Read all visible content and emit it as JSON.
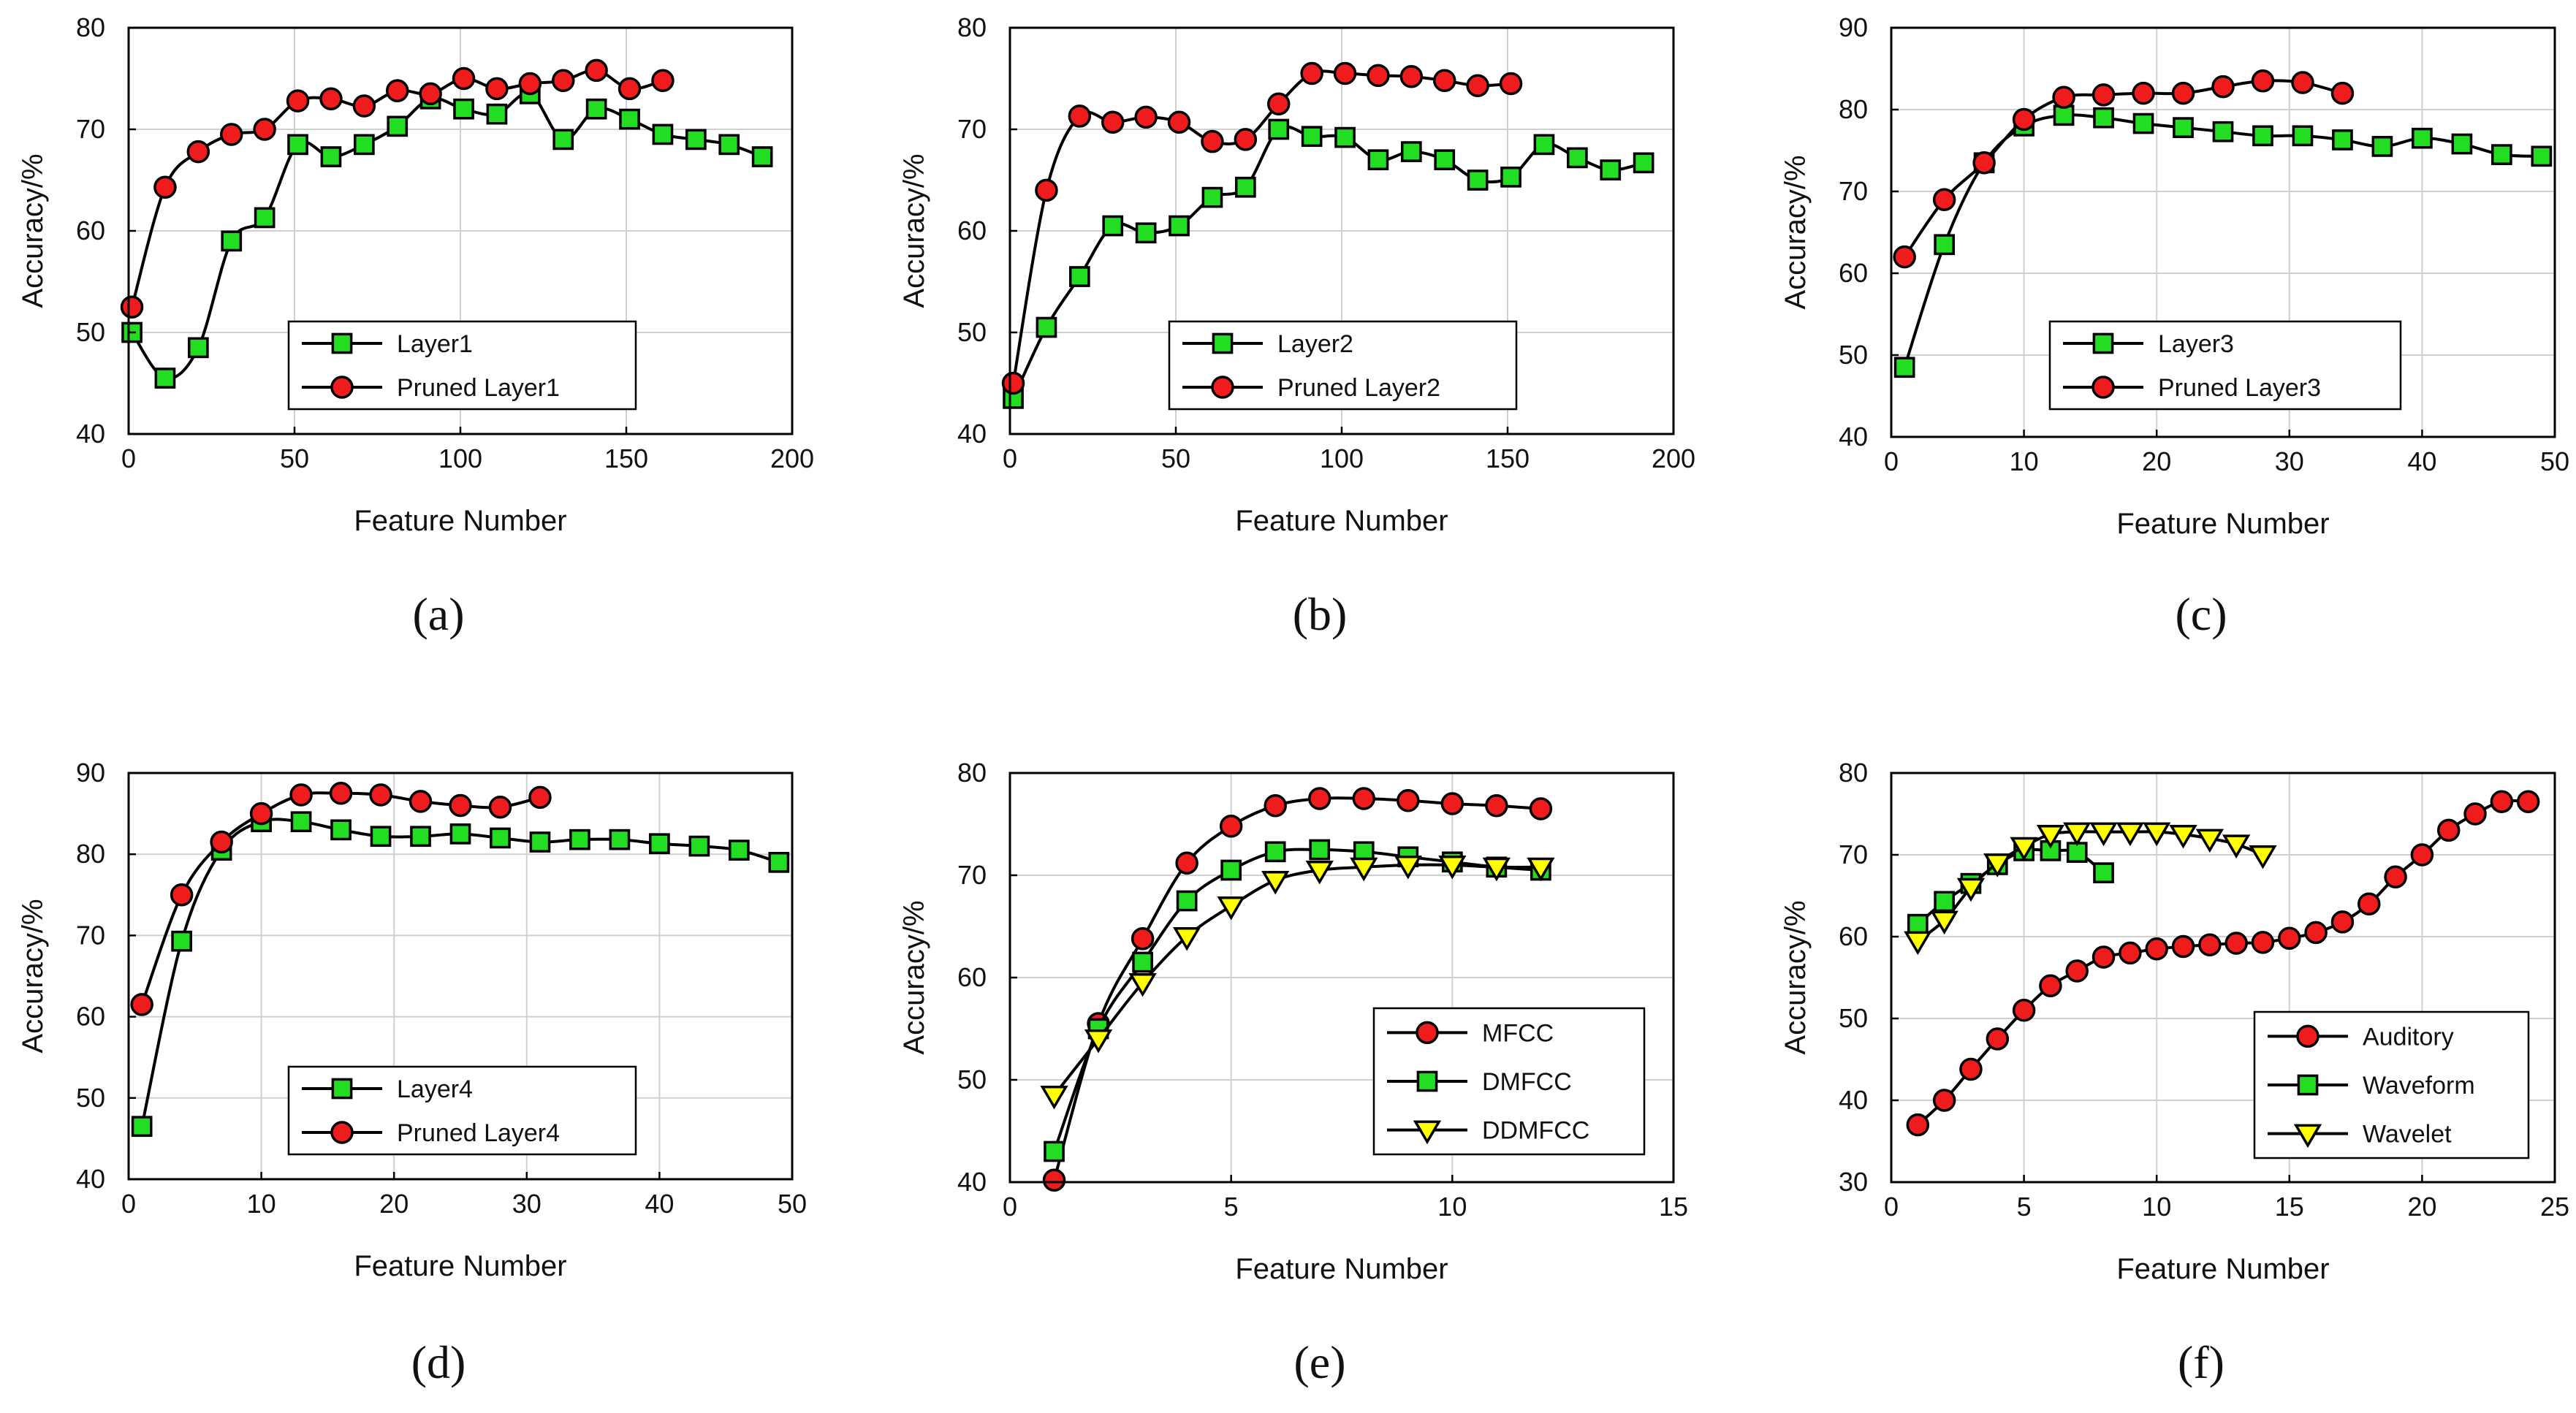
{
  "colors": {
    "red_marker": "#ee1c1c",
    "green_marker": "#22dd22",
    "yellow_marker": "#ffff00",
    "line": "#000000",
    "axes": "#000000"
  },
  "chart_data": [
    {
      "type": "line",
      "panel_label": "(a)",
      "xlabel": "Feature Number",
      "ylabel": "Accuracy/%",
      "xlim": [
        0,
        200
      ],
      "ylim": [
        40,
        80
      ],
      "xticks": [
        0,
        50,
        100,
        150,
        200
      ],
      "yticks": [
        40,
        50,
        60,
        70,
        80
      ],
      "grid": true,
      "legend_placement": "lower-center",
      "series": [
        {
          "name": "Layer1",
          "marker": "square",
          "color": "#22dd22",
          "x": [
            1,
            11,
            21,
            31,
            41,
            51,
            61,
            71,
            81,
            91,
            101,
            111,
            121,
            131,
            141,
            151,
            161,
            171,
            181,
            191
          ],
          "y": [
            50.0,
            45.5,
            48.5,
            59.0,
            61.3,
            68.5,
            67.3,
            68.5,
            70.3,
            73.0,
            72.0,
            71.5,
            73.5,
            69.0,
            72.0,
            71.0,
            69.5,
            69.0,
            68.5,
            67.3
          ]
        },
        {
          "name": "Pruned Layer1",
          "marker": "circle",
          "color": "#ee1c1c",
          "x": [
            1,
            11,
            21,
            31,
            41,
            51,
            61,
            71,
            81,
            91,
            101,
            111,
            121,
            131,
            141,
            151,
            161
          ],
          "y": [
            52.5,
            64.3,
            67.8,
            69.5,
            70.0,
            72.8,
            73.0,
            72.3,
            73.8,
            73.5,
            75.0,
            74.0,
            74.5,
            74.8,
            75.8,
            74.0,
            74.8
          ]
        }
      ]
    },
    {
      "type": "line",
      "panel_label": "(b)",
      "xlabel": "Feature Number",
      "ylabel": "Accuracy/%",
      "xlim": [
        0,
        200
      ],
      "ylim": [
        40,
        80
      ],
      "xticks": [
        0,
        50,
        100,
        150,
        200
      ],
      "yticks": [
        40,
        50,
        60,
        70,
        80
      ],
      "grid": true,
      "legend_placement": "lower-center",
      "series": [
        {
          "name": "Layer2",
          "marker": "square",
          "color": "#22dd22",
          "x": [
            1,
            11,
            21,
            31,
            41,
            51,
            61,
            71,
            81,
            91,
            101,
            111,
            121,
            131,
            141,
            151,
            161,
            171,
            181,
            191
          ],
          "y": [
            43.5,
            50.5,
            55.5,
            60.5,
            59.8,
            60.5,
            63.3,
            64.3,
            70.0,
            69.3,
            69.2,
            67.0,
            67.8,
            67.0,
            65.0,
            65.3,
            68.5,
            67.2,
            66.0,
            66.7
          ]
        },
        {
          "name": "Pruned Layer2",
          "marker": "circle",
          "color": "#ee1c1c",
          "x": [
            1,
            11,
            21,
            31,
            41,
            51,
            61,
            71,
            81,
            91,
            101,
            111,
            121,
            131,
            141,
            151
          ],
          "y": [
            45.0,
            64.0,
            71.3,
            70.7,
            71.2,
            70.7,
            68.8,
            69.0,
            72.5,
            75.5,
            75.5,
            75.3,
            75.2,
            74.8,
            74.3,
            74.5
          ]
        }
      ]
    },
    {
      "type": "line",
      "panel_label": "(c)",
      "xlabel": "Feature Number",
      "ylabel": "Accuracy/%",
      "xlim": [
        0,
        50
      ],
      "ylim": [
        40,
        90
      ],
      "xticks": [
        0,
        10,
        20,
        30,
        40,
        50
      ],
      "yticks": [
        40,
        50,
        60,
        70,
        80,
        90
      ],
      "grid": true,
      "legend_placement": "lower-center",
      "series": [
        {
          "name": "Layer3",
          "marker": "square",
          "color": "#22dd22",
          "x": [
            1,
            4,
            7,
            10,
            13,
            16,
            19,
            22,
            25,
            28,
            31,
            34,
            37,
            40,
            43,
            46,
            49
          ],
          "y": [
            48.5,
            63.5,
            73.5,
            78.0,
            79.3,
            79.0,
            78.3,
            77.8,
            77.3,
            76.8,
            76.8,
            76.3,
            75.5,
            76.5,
            75.8,
            74.5,
            74.3
          ]
        },
        {
          "name": "Pruned Layer3",
          "marker": "circle",
          "color": "#ee1c1c",
          "x": [
            1,
            4,
            7,
            10,
            13,
            16,
            19,
            22,
            25,
            28,
            31,
            34
          ],
          "y": [
            62.0,
            69.0,
            73.5,
            78.8,
            81.5,
            81.8,
            82.0,
            82.0,
            82.8,
            83.5,
            83.3,
            82.0
          ]
        }
      ]
    },
    {
      "type": "line",
      "panel_label": "(d)",
      "xlabel": "Feature Number",
      "ylabel": "Accuracy/%",
      "xlim": [
        0,
        50
      ],
      "ylim": [
        40,
        90
      ],
      "xticks": [
        0,
        10,
        20,
        30,
        40,
        50
      ],
      "yticks": [
        40,
        50,
        60,
        70,
        80,
        90
      ],
      "grid": true,
      "legend_placement": "lower-center",
      "series": [
        {
          "name": "Layer4",
          "marker": "square",
          "color": "#22dd22",
          "x": [
            1,
            4,
            7,
            10,
            13,
            16,
            19,
            22,
            25,
            28,
            31,
            34,
            37,
            40,
            43,
            46,
            49
          ],
          "y": [
            46.5,
            69.3,
            80.5,
            84.0,
            84.0,
            83.0,
            82.2,
            82.2,
            82.5,
            82.0,
            81.5,
            81.8,
            81.8,
            81.3,
            81.0,
            80.5,
            79.0
          ]
        },
        {
          "name": "Pruned Layer4",
          "marker": "circle",
          "color": "#ee1c1c",
          "x": [
            1,
            4,
            7,
            10,
            13,
            16,
            19,
            22,
            25,
            28,
            31
          ],
          "y": [
            61.5,
            75.0,
            81.5,
            85.0,
            87.3,
            87.5,
            87.3,
            86.5,
            86.0,
            85.8,
            87.0
          ]
        }
      ]
    },
    {
      "type": "line",
      "panel_label": "(e)",
      "xlabel": "Feature Number",
      "ylabel": "Accuracy/%",
      "xlim": [
        0,
        15
      ],
      "ylim": [
        40,
        80
      ],
      "xticks": [
        0,
        5,
        10,
        15
      ],
      "yticks": [
        40,
        50,
        60,
        70,
        80
      ],
      "grid": true,
      "legend_placement": "lower-right",
      "series": [
        {
          "name": "MFCC",
          "marker": "circle",
          "color": "#ee1c1c",
          "x": [
            1,
            2,
            3,
            4,
            5,
            6,
            7,
            8,
            9,
            10,
            11,
            12
          ],
          "y": [
            40.2,
            55.5,
            63.8,
            71.2,
            74.8,
            76.8,
            77.5,
            77.5,
            77.3,
            77.0,
            76.8,
            76.5
          ]
        },
        {
          "name": "DMFCC",
          "marker": "square",
          "color": "#22dd22",
          "x": [
            1,
            2,
            3,
            4,
            5,
            6,
            7,
            8,
            9,
            10,
            11,
            12
          ],
          "y": [
            43.0,
            55.0,
            61.5,
            67.5,
            70.5,
            72.3,
            72.5,
            72.3,
            71.8,
            71.3,
            70.8,
            70.5
          ]
        },
        {
          "name": "DDMFCC",
          "marker": "triangle-down",
          "color": "#ffff00",
          "x": [
            1,
            2,
            3,
            4,
            5,
            6,
            7,
            8,
            9,
            10,
            11,
            12
          ],
          "y": [
            48.5,
            54.0,
            59.5,
            64.0,
            67.0,
            69.5,
            70.5,
            70.8,
            71.0,
            71.0,
            70.8,
            70.8
          ]
        }
      ]
    },
    {
      "type": "line",
      "panel_label": "(f)",
      "xlabel": "Feature Number",
      "ylabel": "Accuracy/%",
      "xlim": [
        0,
        25
      ],
      "ylim": [
        30,
        80
      ],
      "xticks": [
        0,
        5,
        10,
        15,
        20,
        25
      ],
      "yticks": [
        30,
        40,
        50,
        60,
        70,
        80
      ],
      "grid": true,
      "legend_placement": "lower-right",
      "series": [
        {
          "name": "Auditory",
          "marker": "circle",
          "color": "#ee1c1c",
          "x": [
            1,
            2,
            3,
            4,
            5,
            6,
            7,
            8,
            9,
            10,
            11,
            12,
            13,
            14,
            15,
            16,
            17,
            18,
            19,
            20,
            21,
            22,
            23,
            24
          ],
          "y": [
            37.0,
            40.0,
            43.8,
            47.5,
            51.0,
            54.0,
            55.8,
            57.5,
            58.0,
            58.5,
            58.8,
            59.0,
            59.2,
            59.3,
            59.8,
            60.5,
            61.8,
            64.0,
            67.3,
            70.0,
            73.0,
            75.0,
            76.5,
            76.5
          ]
        },
        {
          "name": "Waveform",
          "marker": "square",
          "color": "#22dd22",
          "x": [
            1,
            2,
            3,
            4,
            5,
            6,
            7,
            8
          ],
          "y": [
            61.5,
            64.3,
            66.5,
            68.8,
            70.5,
            70.5,
            70.3,
            67.8
          ]
        },
        {
          "name": "Wavelet",
          "marker": "triangle-down",
          "color": "#ffff00",
          "x": [
            1,
            2,
            3,
            4,
            5,
            6,
            7,
            8,
            9,
            10,
            11,
            12,
            13,
            14
          ],
          "y": [
            59.5,
            62.0,
            66.0,
            69.0,
            71.0,
            72.5,
            72.8,
            72.8,
            72.8,
            72.8,
            72.5,
            72.0,
            71.3,
            70.0
          ]
        }
      ]
    }
  ]
}
